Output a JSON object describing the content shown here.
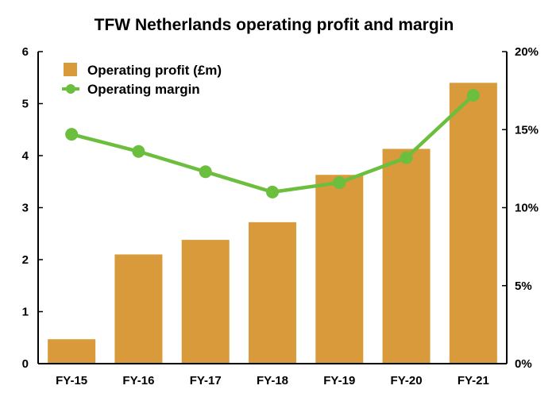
{
  "chart_data": {
    "type": "bar",
    "title": "TFW Netherlands operating profit and margin",
    "categories": [
      "FY-15",
      "FY-16",
      "FY-17",
      "FY-18",
      "FY-19",
      "FY-20",
      "FY-21"
    ],
    "series": [
      {
        "name": "Operating profit (£m)",
        "type": "bar",
        "axis": "left",
        "color": "#D89A3A",
        "values": [
          0.47,
          2.1,
          2.38,
          2.72,
          3.63,
          4.13,
          5.4
        ]
      },
      {
        "name": "Operating margin",
        "type": "line",
        "axis": "right",
        "color": "#6BBE3E",
        "values": [
          14.7,
          13.6,
          12.3,
          11.0,
          11.6,
          13.2,
          17.2
        ]
      }
    ],
    "y_left": {
      "lim": [
        0,
        6
      ],
      "ticks": [
        "0",
        "1",
        "2",
        "3",
        "4",
        "5",
        "6"
      ]
    },
    "y_right": {
      "lim": [
        0,
        20
      ],
      "ticks": [
        "0%",
        "5%",
        "10%",
        "15%",
        "20%"
      ]
    },
    "legend_position": "top-left",
    "grid": false
  }
}
